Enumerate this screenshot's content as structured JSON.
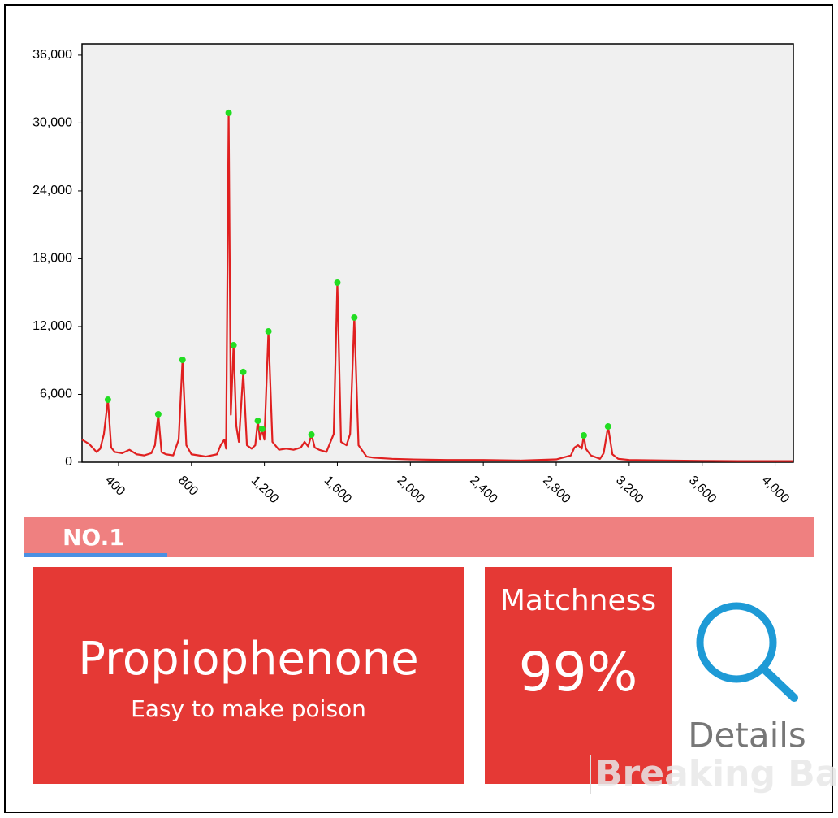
{
  "chart_data": {
    "type": "line",
    "color": "#e02020",
    "x": [
      200,
      240,
      280,
      300,
      320,
      342,
      360,
      380,
      420,
      460,
      500,
      540,
      580,
      600,
      618,
      636,
      660,
      700,
      730,
      751,
      772,
      800,
      840,
      880,
      940,
      960,
      980,
      990,
      1004,
      1016,
      1031,
      1046,
      1060,
      1084,
      1104,
      1130,
      1150,
      1164,
      1176,
      1187,
      1200,
      1222,
      1244,
      1280,
      1320,
      1360,
      1400,
      1420,
      1440,
      1458,
      1476,
      1500,
      1540,
      1580,
      1600,
      1620,
      1650,
      1670,
      1693,
      1716,
      1760,
      1800,
      1900,
      2000,
      2200,
      2400,
      2600,
      2700,
      2800,
      2880,
      2900,
      2920,
      2940,
      2951,
      2962,
      2990,
      3040,
      3060,
      3084,
      3108,
      3140,
      3200,
      3400,
      3600,
      3800,
      4000,
      4100
    ],
    "values": [
      2000,
      1600,
      900,
      1200,
      2500,
      5530,
      1300,
      900,
      800,
      1100,
      700,
      600,
      800,
      1500,
      4240,
      900,
      700,
      600,
      2000,
      9050,
      1500,
      700,
      600,
      500,
      700,
      1500,
      2000,
      1200,
      30900,
      4200,
      10350,
      3200,
      1800,
      7980,
      1500,
      1200,
      1500,
      3660,
      2000,
      2950,
      2000,
      11570,
      1800,
      1100,
      1200,
      1100,
      1300,
      1800,
      1400,
      2440,
      1300,
      1100,
      900,
      2500,
      15880,
      1800,
      1500,
      2500,
      12790,
      1500,
      500,
      400,
      300,
      250,
      200,
      200,
      150,
      200,
      250,
      600,
      1300,
      1500,
      1200,
      2370,
      1200,
      600,
      300,
      800,
      3160,
      700,
      300,
      200,
      150,
      120,
      100,
      100,
      100
    ],
    "peaks": {
      "color": "#22dd22",
      "x": [
        342,
        618,
        751,
        1004,
        1031,
        1084,
        1164,
        1187,
        1222,
        1458,
        1600,
        1693,
        2951,
        3084
      ],
      "values": [
        5530,
        4240,
        9050,
        30900,
        10350,
        7980,
        3660,
        2950,
        11570,
        2440,
        15880,
        12790,
        2370,
        3160
      ]
    },
    "xlim": [
      200,
      4100
    ],
    "xticks": [
      400,
      800,
      {
        "value": 1200,
        "label": "1,200"
      },
      {
        "value": 1600,
        "label": "1,600"
      },
      {
        "value": 2000,
        "label": "2,000"
      },
      {
        "value": 2400,
        "label": "2,400"
      },
      {
        "value": 2800,
        "label": "2,800"
      },
      {
        "value": 3200,
        "label": "3,200"
      },
      {
        "value": 3600,
        "label": "3,600"
      },
      {
        "value": 4000,
        "label": "4,000"
      }
    ],
    "ylim": [
      0,
      37000
    ],
    "yticks": [
      0,
      {
        "value": 6000,
        "label": "6,000"
      },
      {
        "value": 12000,
        "label": "12,000"
      },
      {
        "value": 18000,
        "label": "18,000"
      },
      {
        "value": 24000,
        "label": "24,000"
      },
      {
        "value": 30000,
        "label": "30,000"
      },
      {
        "value": 36000,
        "label": "36,000"
      }
    ]
  },
  "tab": {
    "label": "NO.1"
  },
  "result": {
    "name": "Propiophenone",
    "description": "Easy to make poison",
    "match_label": "Matchness",
    "match": "99%"
  },
  "details": "Details",
  "watermark": "Breaking Bad"
}
